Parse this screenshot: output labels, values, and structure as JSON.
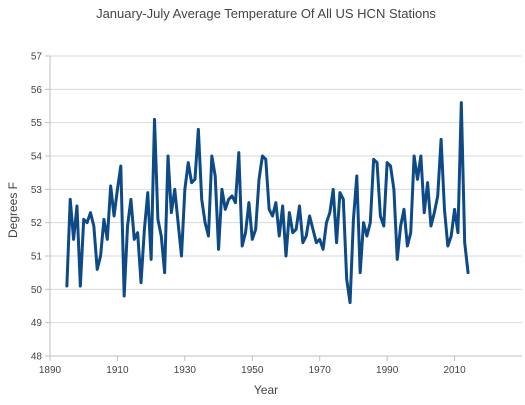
{
  "chart_data": {
    "type": "line",
    "title": "January-July Average Temperature Of All US HCN Stations",
    "xlabel": "Year",
    "ylabel": "Degrees F",
    "xlim": [
      1890,
      2030
    ],
    "ylim": [
      48,
      57
    ],
    "x_ticks": [
      1890,
      1910,
      1930,
      1950,
      1970,
      1990,
      2010
    ],
    "y_ticks": [
      48,
      49,
      50,
      51,
      52,
      53,
      54,
      55,
      56,
      57
    ],
    "grid": "horizontal",
    "legend": "none",
    "line_color": "#0e4a86",
    "series": [
      {
        "x": [
          1895,
          1896,
          1897,
          1898,
          1899,
          1900,
          1901,
          1902,
          1903,
          1904,
          1905,
          1906,
          1907,
          1908,
          1909,
          1910,
          1911,
          1912,
          1913,
          1914,
          1915,
          1916,
          1917,
          1918,
          1919,
          1920,
          1921,
          1922,
          1923,
          1924,
          1925,
          1926,
          1927,
          1928,
          1929,
          1930,
          1931,
          1932,
          1933,
          1934,
          1935,
          1936,
          1937,
          1938,
          1939,
          1940,
          1941,
          1942,
          1943,
          1944,
          1945,
          1946,
          1947,
          1948,
          1949,
          1950,
          1951,
          1952,
          1953,
          1954,
          1955,
          1956,
          1957,
          1958,
          1959,
          1960,
          1961,
          1962,
          1963,
          1964,
          1965,
          1966,
          1967,
          1968,
          1969,
          1970,
          1971,
          1972,
          1973,
          1974,
          1975,
          1976,
          1977,
          1978,
          1979,
          1980,
          1981,
          1982,
          1983,
          1984,
          1985,
          1986,
          1987,
          1988,
          1989,
          1990,
          1991,
          1992,
          1993,
          1994,
          1995,
          1996,
          1997,
          1998,
          1999,
          2000,
          2001,
          2002,
          2003,
          2004,
          2005,
          2006,
          2007,
          2008,
          2009,
          2010,
          2011,
          2012,
          2013,
          2014
        ],
        "values": [
          50.1,
          52.7,
          51.5,
          52.5,
          50.1,
          52.1,
          52.0,
          52.3,
          51.9,
          50.6,
          51.0,
          52.1,
          51.5,
          53.1,
          52.2,
          53.0,
          53.7,
          49.8,
          51.9,
          52.7,
          51.5,
          51.7,
          50.2,
          51.8,
          52.9,
          50.9,
          55.1,
          52.1,
          51.6,
          50.5,
          54.0,
          52.3,
          53.0,
          52.0,
          51.0,
          53.0,
          53.8,
          53.2,
          53.3,
          54.8,
          52.7,
          52.0,
          51.6,
          54.0,
          53.4,
          51.2,
          53.0,
          52.4,
          52.7,
          52.8,
          52.6,
          54.1,
          51.3,
          51.7,
          52.6,
          51.5,
          51.8,
          53.3,
          54.0,
          53.9,
          52.4,
          52.2,
          52.6,
          51.6,
          52.5,
          51.0,
          52.3,
          51.7,
          51.8,
          52.5,
          51.4,
          51.6,
          52.2,
          51.8,
          51.4,
          51.5,
          51.2,
          52.0,
          52.3,
          53.0,
          51.4,
          52.9,
          52.7,
          50.3,
          49.6,
          52.1,
          53.4,
          50.5,
          52.0,
          51.6,
          52.0,
          53.9,
          53.8,
          52.2,
          51.9,
          53.8,
          53.7,
          53.0,
          50.9,
          51.9,
          52.4,
          51.3,
          51.7,
          54.0,
          53.3,
          54.0,
          52.3,
          53.2,
          51.9,
          52.3,
          52.8,
          54.5,
          52.4,
          51.3,
          51.6,
          52.4,
          51.7,
          55.6,
          51.4,
          50.5
        ]
      }
    ]
  }
}
